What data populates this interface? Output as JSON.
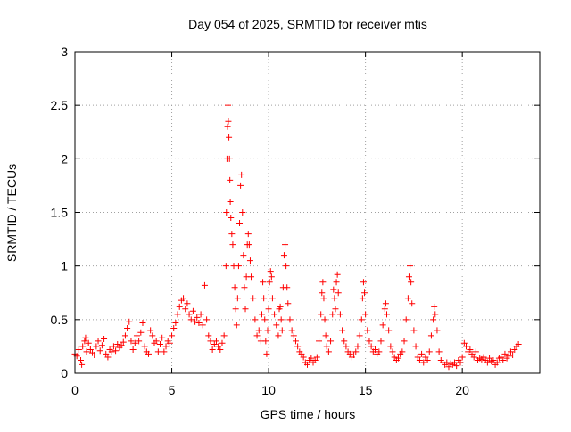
{
  "chart_data": {
    "type": "scatter",
    "title": "Day 054 of 2025, SRMTID for receiver mtis",
    "xlabel": "GPS time / hours",
    "ylabel": "SRMTID / TECUs",
    "xlim": [
      0,
      24
    ],
    "ylim": [
      0,
      3
    ],
    "xticks": [
      0,
      5,
      10,
      15,
      20
    ],
    "yticks": [
      0,
      0.5,
      1,
      1.5,
      2,
      2.5,
      3
    ],
    "xtick_labels": [
      "0",
      "5",
      "10",
      "15",
      "20"
    ],
    "ytick_labels": [
      "0",
      "0.5",
      "1",
      "1.5",
      "2",
      "2.5",
      "3"
    ],
    "grid": true,
    "marker": "+",
    "color": "#ff0000",
    "series": [
      {
        "name": "SRMTID",
        "points": [
          [
            0.0,
            0.18
          ],
          [
            0.1,
            0.16
          ],
          [
            0.2,
            0.22
          ],
          [
            0.3,
            0.12
          ],
          [
            0.35,
            0.08
          ],
          [
            0.4,
            0.25
          ],
          [
            0.5,
            0.3
          ],
          [
            0.55,
            0.33
          ],
          [
            0.6,
            0.2
          ],
          [
            0.7,
            0.28
          ],
          [
            0.8,
            0.22
          ],
          [
            0.9,
            0.19
          ],
          [
            1.0,
            0.17
          ],
          [
            1.1,
            0.25
          ],
          [
            1.2,
            0.3
          ],
          [
            1.3,
            0.21
          ],
          [
            1.4,
            0.26
          ],
          [
            1.5,
            0.32
          ],
          [
            1.6,
            0.18
          ],
          [
            1.7,
            0.15
          ],
          [
            1.8,
            0.22
          ],
          [
            1.9,
            0.2
          ],
          [
            2.0,
            0.25
          ],
          [
            2.1,
            0.21
          ],
          [
            2.2,
            0.27
          ],
          [
            2.3,
            0.24
          ],
          [
            2.4,
            0.26
          ],
          [
            2.5,
            0.29
          ],
          [
            2.6,
            0.35
          ],
          [
            2.7,
            0.42
          ],
          [
            2.8,
            0.48
          ],
          [
            2.9,
            0.3
          ],
          [
            3.0,
            0.22
          ],
          [
            3.1,
            0.28
          ],
          [
            3.2,
            0.35
          ],
          [
            3.3,
            0.3
          ],
          [
            3.4,
            0.38
          ],
          [
            3.5,
            0.47
          ],
          [
            3.6,
            0.25
          ],
          [
            3.7,
            0.2
          ],
          [
            3.8,
            0.18
          ],
          [
            3.9,
            0.4
          ],
          [
            4.0,
            0.35
          ],
          [
            4.1,
            0.28
          ],
          [
            4.2,
            0.3
          ],
          [
            4.3,
            0.2
          ],
          [
            4.4,
            0.27
          ],
          [
            4.5,
            0.33
          ],
          [
            4.6,
            0.2
          ],
          [
            4.7,
            0.25
          ],
          [
            4.8,
            0.3
          ],
          [
            4.9,
            0.28
          ],
          [
            5.0,
            0.35
          ],
          [
            5.1,
            0.42
          ],
          [
            5.2,
            0.47
          ],
          [
            5.3,
            0.55
          ],
          [
            5.4,
            0.62
          ],
          [
            5.5,
            0.68
          ],
          [
            5.6,
            0.7
          ],
          [
            5.7,
            0.6
          ],
          [
            5.8,
            0.65
          ],
          [
            5.9,
            0.55
          ],
          [
            6.0,
            0.5
          ],
          [
            6.1,
            0.58
          ],
          [
            6.2,
            0.48
          ],
          [
            6.3,
            0.52
          ],
          [
            6.4,
            0.47
          ],
          [
            6.5,
            0.55
          ],
          [
            6.6,
            0.45
          ],
          [
            6.7,
            0.82
          ],
          [
            6.8,
            0.5
          ],
          [
            6.9,
            0.35
          ],
          [
            7.0,
            0.3
          ],
          [
            7.1,
            0.22
          ],
          [
            7.2,
            0.27
          ],
          [
            7.3,
            0.3
          ],
          [
            7.4,
            0.25
          ],
          [
            7.5,
            0.22
          ],
          [
            7.6,
            0.28
          ],
          [
            7.7,
            0.35
          ],
          [
            7.8,
            1.0
          ],
          [
            7.82,
            1.5
          ],
          [
            7.85,
            2.0
          ],
          [
            7.88,
            2.3
          ],
          [
            7.9,
            2.5
          ],
          [
            7.92,
            2.35
          ],
          [
            7.95,
            2.2
          ],
          [
            7.98,
            2.0
          ],
          [
            8.0,
            1.8
          ],
          [
            8.02,
            1.6
          ],
          [
            8.05,
            1.45
          ],
          [
            8.1,
            1.3
          ],
          [
            8.15,
            1.2
          ],
          [
            8.2,
            1.0
          ],
          [
            8.25,
            0.8
          ],
          [
            8.3,
            0.6
          ],
          [
            8.35,
            0.45
          ],
          [
            8.4,
            0.7
          ],
          [
            8.45,
            1.0
          ],
          [
            8.5,
            1.4
          ],
          [
            8.55,
            1.75
          ],
          [
            8.6,
            1.85
          ],
          [
            8.65,
            1.5
          ],
          [
            8.7,
            1.1
          ],
          [
            8.75,
            0.8
          ],
          [
            8.8,
            0.6
          ],
          [
            8.85,
            0.9
          ],
          [
            8.9,
            1.2
          ],
          [
            8.95,
            1.3
          ],
          [
            9.0,
            1.2
          ],
          [
            9.05,
            1.05
          ],
          [
            9.1,
            0.9
          ],
          [
            9.2,
            0.7
          ],
          [
            9.3,
            0.5
          ],
          [
            9.4,
            0.35
          ],
          [
            9.5,
            0.4
          ],
          [
            9.6,
            0.3
          ],
          [
            9.65,
            0.55
          ],
          [
            9.7,
            0.85
          ],
          [
            9.75,
            0.7
          ],
          [
            9.8,
            0.5
          ],
          [
            9.85,
            0.3
          ],
          [
            9.9,
            0.18
          ],
          [
            9.95,
            0.4
          ],
          [
            10.0,
            0.6
          ],
          [
            10.05,
            0.85
          ],
          [
            10.1,
            0.95
          ],
          [
            10.15,
            0.9
          ],
          [
            10.2,
            0.7
          ],
          [
            10.3,
            0.55
          ],
          [
            10.4,
            0.45
          ],
          [
            10.5,
            0.35
          ],
          [
            10.55,
            0.6
          ],
          [
            10.6,
            0.62
          ],
          [
            10.65,
            0.5
          ],
          [
            10.7,
            0.4
          ],
          [
            10.75,
            0.8
          ],
          [
            10.8,
            1.1
          ],
          [
            10.85,
            1.2
          ],
          [
            10.9,
            1.0
          ],
          [
            10.95,
            0.8
          ],
          [
            11.0,
            0.65
          ],
          [
            11.1,
            0.5
          ],
          [
            11.2,
            0.4
          ],
          [
            11.3,
            0.35
          ],
          [
            11.4,
            0.3
          ],
          [
            11.5,
            0.25
          ],
          [
            11.6,
            0.2
          ],
          [
            11.7,
            0.18
          ],
          [
            11.8,
            0.15
          ],
          [
            11.9,
            0.1
          ],
          [
            12.0,
            0.08
          ],
          [
            12.1,
            0.12
          ],
          [
            12.2,
            0.14
          ],
          [
            12.3,
            0.1
          ],
          [
            12.4,
            0.12
          ],
          [
            12.5,
            0.15
          ],
          [
            12.6,
            0.3
          ],
          [
            12.7,
            0.55
          ],
          [
            12.75,
            0.75
          ],
          [
            12.8,
            0.85
          ],
          [
            12.85,
            0.7
          ],
          [
            12.9,
            0.5
          ],
          [
            12.95,
            0.35
          ],
          [
            13.0,
            0.25
          ],
          [
            13.1,
            0.2
          ],
          [
            13.2,
            0.3
          ],
          [
            13.3,
            0.55
          ],
          [
            13.35,
            0.78
          ],
          [
            13.4,
            0.7
          ],
          [
            13.45,
            0.6
          ],
          [
            13.5,
            0.85
          ],
          [
            13.55,
            0.92
          ],
          [
            13.6,
            0.75
          ],
          [
            13.7,
            0.55
          ],
          [
            13.8,
            0.4
          ],
          [
            13.9,
            0.3
          ],
          [
            14.0,
            0.25
          ],
          [
            14.1,
            0.2
          ],
          [
            14.2,
            0.18
          ],
          [
            14.3,
            0.15
          ],
          [
            14.4,
            0.17
          ],
          [
            14.5,
            0.2
          ],
          [
            14.6,
            0.25
          ],
          [
            14.7,
            0.35
          ],
          [
            14.8,
            0.5
          ],
          [
            14.85,
            0.7
          ],
          [
            14.9,
            0.85
          ],
          [
            14.95,
            0.75
          ],
          [
            15.0,
            0.55
          ],
          [
            15.1,
            0.4
          ],
          [
            15.2,
            0.3
          ],
          [
            15.3,
            0.25
          ],
          [
            15.4,
            0.2
          ],
          [
            15.5,
            0.22
          ],
          [
            15.6,
            0.18
          ],
          [
            15.7,
            0.2
          ],
          [
            15.8,
            0.3
          ],
          [
            15.9,
            0.45
          ],
          [
            16.0,
            0.6
          ],
          [
            16.05,
            0.65
          ],
          [
            16.1,
            0.55
          ],
          [
            16.2,
            0.4
          ],
          [
            16.3,
            0.25
          ],
          [
            16.4,
            0.2
          ],
          [
            16.5,
            0.15
          ],
          [
            16.6,
            0.12
          ],
          [
            16.7,
            0.14
          ],
          [
            16.8,
            0.18
          ],
          [
            16.9,
            0.2
          ],
          [
            17.0,
            0.3
          ],
          [
            17.1,
            0.5
          ],
          [
            17.2,
            0.7
          ],
          [
            17.25,
            0.9
          ],
          [
            17.3,
            1.0
          ],
          [
            17.35,
            0.85
          ],
          [
            17.4,
            0.65
          ],
          [
            17.5,
            0.4
          ],
          [
            17.6,
            0.25
          ],
          [
            17.7,
            0.15
          ],
          [
            17.8,
            0.12
          ],
          [
            17.9,
            0.18
          ],
          [
            18.0,
            0.1
          ],
          [
            18.1,
            0.15
          ],
          [
            18.2,
            0.12
          ],
          [
            18.3,
            0.2
          ],
          [
            18.4,
            0.35
          ],
          [
            18.5,
            0.5
          ],
          [
            18.55,
            0.62
          ],
          [
            18.6,
            0.55
          ],
          [
            18.7,
            0.4
          ],
          [
            18.8,
            0.2
          ],
          [
            18.9,
            0.12
          ],
          [
            19.0,
            0.1
          ],
          [
            19.1,
            0.08
          ],
          [
            19.2,
            0.1
          ],
          [
            19.3,
            0.06
          ],
          [
            19.4,
            0.09
          ],
          [
            19.5,
            0.08
          ],
          [
            19.6,
            0.1
          ],
          [
            19.7,
            0.07
          ],
          [
            19.8,
            0.12
          ],
          [
            19.9,
            0.1
          ],
          [
            20.0,
            0.15
          ],
          [
            20.1,
            0.28
          ],
          [
            20.2,
            0.25
          ],
          [
            20.3,
            0.2
          ],
          [
            20.4,
            0.22
          ],
          [
            20.5,
            0.18
          ],
          [
            20.6,
            0.15
          ],
          [
            20.7,
            0.2
          ],
          [
            20.8,
            0.12
          ],
          [
            20.9,
            0.14
          ],
          [
            21.0,
            0.13
          ],
          [
            21.1,
            0.15
          ],
          [
            21.2,
            0.12
          ],
          [
            21.3,
            0.1
          ],
          [
            21.4,
            0.14
          ],
          [
            21.5,
            0.11
          ],
          [
            21.6,
            0.12
          ],
          [
            21.7,
            0.08
          ],
          [
            21.8,
            0.1
          ],
          [
            21.9,
            0.14
          ],
          [
            22.0,
            0.15
          ],
          [
            22.1,
            0.12
          ],
          [
            22.2,
            0.18
          ],
          [
            22.3,
            0.14
          ],
          [
            22.4,
            0.16
          ],
          [
            22.5,
            0.2
          ],
          [
            22.6,
            0.17
          ],
          [
            22.7,
            0.22
          ],
          [
            22.8,
            0.25
          ],
          [
            22.9,
            0.27
          ]
        ]
      }
    ]
  }
}
